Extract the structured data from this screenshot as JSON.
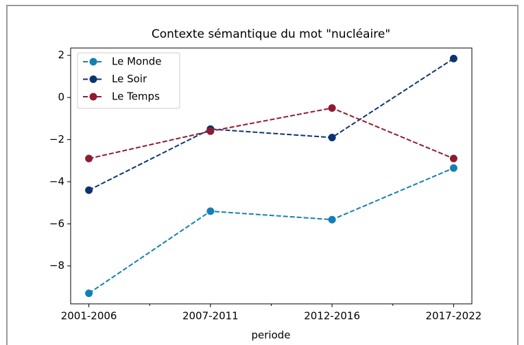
{
  "chart_data": {
    "type": "line",
    "title": "Contexte sémantique du mot \"nucléaire\"",
    "x_label": "periode",
    "categories": [
      "2001-2006",
      "2007-2011",
      "2012-2016",
      "2017-2022"
    ],
    "series": [
      {
        "name": "Le Monde",
        "color": "#1380b3",
        "values": [
          -9.3,
          -5.4,
          -5.8,
          -3.35
        ]
      },
      {
        "name": "Le Soir",
        "color": "#0c3470",
        "values": [
          -4.4,
          -1.5,
          -1.9,
          1.85
        ]
      },
      {
        "name": "Le Temps",
        "color": "#8f1b31",
        "values": [
          -2.9,
          -1.6,
          -0.5,
          -2.9
        ]
      }
    ],
    "ylim": [
      -9.8,
      2.35
    ],
    "yticks": [
      {
        "value": -8,
        "label": "−8"
      },
      {
        "value": -6,
        "label": "−6"
      },
      {
        "value": -4,
        "label": "−4"
      },
      {
        "value": -2,
        "label": "−2"
      },
      0,
      2
    ],
    "linestyle": "dashed",
    "grid": false,
    "legend": "upper left"
  }
}
